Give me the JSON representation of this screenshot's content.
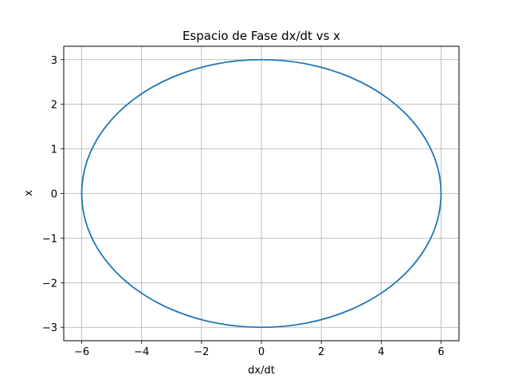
{
  "chart_data": {
    "type": "line",
    "title": "Espacio de Fase dx/dt vs x",
    "xlabel": "dx/dt",
    "ylabel": "x",
    "xlim": [
      -6.6,
      6.6
    ],
    "ylim": [
      -3.3,
      3.3
    ],
    "x_ticks": [
      -6,
      -4,
      -2,
      0,
      2,
      4,
      6
    ],
    "y_ticks": [
      -3,
      -2,
      -1,
      0,
      1,
      2,
      3
    ],
    "x_tick_labels": [
      "−6",
      "−4",
      "−2",
      "0",
      "2",
      "4",
      "6"
    ],
    "y_tick_labels": [
      "−3",
      "−2",
      "−1",
      "0",
      "1",
      "2",
      "3"
    ],
    "grid": true,
    "series": [
      {
        "color": "#1f77b4",
        "x": [
          6.0,
          5.796,
          5.196,
          4.243,
          3.0,
          1.553,
          0.0,
          -1.553,
          -3.0,
          -4.243,
          -5.196,
          -5.796,
          -6.0,
          -5.796,
          -5.196,
          -4.243,
          -3.0,
          -1.553,
          0.0,
          1.553,
          3.0,
          4.243,
          5.196,
          5.796,
          6.0
        ],
        "y": [
          0.0,
          0.776,
          1.5,
          2.121,
          2.598,
          2.898,
          3.0,
          2.898,
          2.598,
          2.121,
          1.5,
          0.776,
          0.0,
          -0.776,
          -1.5,
          -2.121,
          -2.598,
          -2.898,
          -3.0,
          -2.898,
          -2.598,
          -2.121,
          -1.5,
          -0.776,
          0.0
        ]
      }
    ]
  }
}
